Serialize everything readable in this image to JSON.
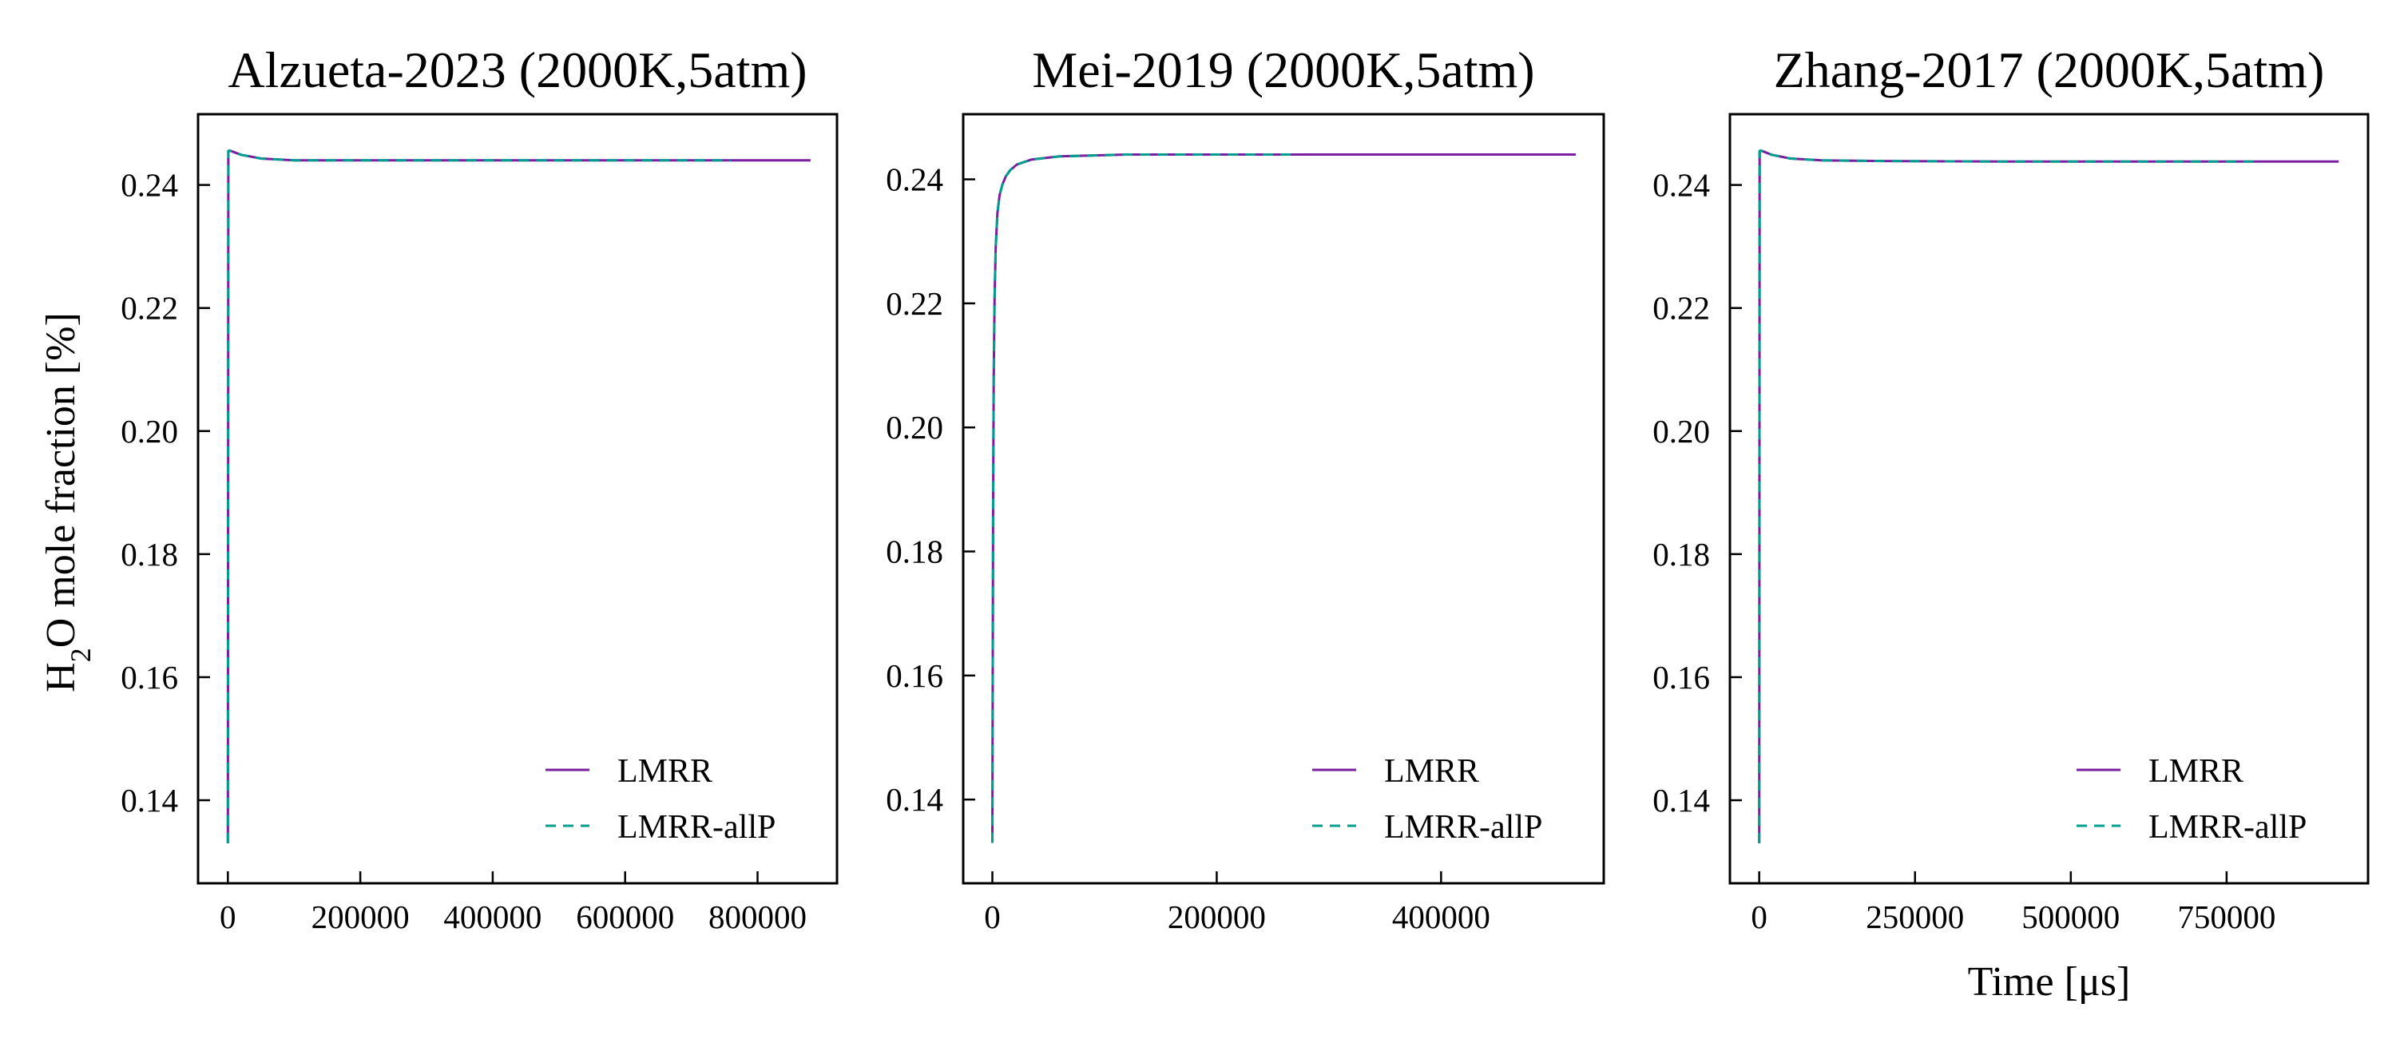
{
  "figure": {
    "ylabel_main": "H",
    "ylabel_sub": "2",
    "ylabel_rest": "O mole fraction [%]",
    "shared_xlabel": "Time [μs]"
  },
  "colors": {
    "LMRR": "#7b1fa2",
    "LMRR-allP": "#009e8e"
  },
  "chart_data": [
    {
      "type": "line",
      "title": "Alzueta-2023 (2000K,5atm)",
      "xlabel": "",
      "ylabel": "H2O mole fraction [%]",
      "xlim": [
        -45000,
        920000
      ],
      "ylim": [
        0.1265,
        0.2515
      ],
      "xticks": [
        0,
        200000,
        400000,
        600000,
        800000
      ],
      "xtick_labels": [
        "0",
        "200000",
        "400000",
        "600000",
        "800000"
      ],
      "yticks": [
        0.14,
        0.16,
        0.18,
        0.2,
        0.22,
        0.24
      ],
      "ytick_labels": [
        "0.14",
        "0.16",
        "0.18",
        "0.20",
        "0.22",
        "0.24"
      ],
      "legend_position": "lower-right",
      "grid": false,
      "series": [
        {
          "name": "LMRR",
          "style": "solid",
          "x": [
            0,
            700,
            2000,
            5000,
            20000,
            50000,
            100000,
            200000,
            400000,
            600000,
            800000,
            880000
          ],
          "y": [
            0.133,
            0.2455,
            0.2456,
            0.2455,
            0.2449,
            0.2443,
            0.244,
            0.244,
            0.244,
            0.244,
            0.244,
            0.244
          ]
        },
        {
          "name": "LMRR-allP",
          "style": "dashed",
          "x": [
            0,
            700,
            2000,
            5000,
            20000,
            50000,
            100000,
            200000,
            400000,
            600000,
            760000
          ],
          "y": [
            0.133,
            0.2455,
            0.2456,
            0.2455,
            0.2449,
            0.2443,
            0.244,
            0.244,
            0.244,
            0.244,
            0.244
          ]
        }
      ]
    },
    {
      "type": "line",
      "title": "Mei-2019 (2000K,5atm)",
      "xlabel": "",
      "ylabel": "",
      "xlim": [
        -26000,
        545000
      ],
      "ylim": [
        0.1265,
        0.2505
      ],
      "xticks": [
        0,
        200000,
        400000
      ],
      "xtick_labels": [
        "0",
        "200000",
        "400000"
      ],
      "yticks": [
        0.14,
        0.16,
        0.18,
        0.2,
        0.22,
        0.24
      ],
      "ytick_labels": [
        "0.14",
        "0.16",
        "0.18",
        "0.20",
        "0.22",
        "0.24"
      ],
      "legend_position": "lower-right",
      "grid": false,
      "series": [
        {
          "name": "LMRR",
          "style": "solid",
          "x": [
            0,
            600,
            1200,
            2000,
            3000,
            4500,
            6500,
            9000,
            12000,
            16000,
            22000,
            35000,
            60000,
            120000,
            270000,
            400000,
            520000
          ],
          "y": [
            0.133,
            0.185,
            0.208,
            0.221,
            0.229,
            0.2345,
            0.2375,
            0.2392,
            0.2405,
            0.2415,
            0.2424,
            0.2432,
            0.2437,
            0.244,
            0.244,
            0.244,
            0.244
          ]
        },
        {
          "name": "LMRR-allP",
          "style": "dashed",
          "x": [
            0,
            600,
            1200,
            2000,
            3000,
            4500,
            6500,
            9000,
            12000,
            16000,
            22000,
            35000,
            60000,
            120000,
            270000
          ],
          "y": [
            0.133,
            0.185,
            0.208,
            0.221,
            0.229,
            0.2345,
            0.2375,
            0.2392,
            0.2405,
            0.2415,
            0.2424,
            0.2432,
            0.2437,
            0.244,
            0.244
          ]
        }
      ]
    },
    {
      "type": "line",
      "title": "Zhang-2017 (2000K,5atm)",
      "xlabel": "Time [μs]",
      "ylabel": "",
      "xlim": [
        -47000,
        977000
      ],
      "ylim": [
        0.1265,
        0.2515
      ],
      "xticks": [
        0,
        250000,
        500000,
        750000
      ],
      "xtick_labels": [
        "0",
        "250000",
        "500000",
        "750000"
      ],
      "yticks": [
        0.14,
        0.16,
        0.18,
        0.2,
        0.22,
        0.24
      ],
      "ytick_labels": [
        "0.14",
        "0.16",
        "0.18",
        "0.20",
        "0.22",
        "0.24"
      ],
      "legend_position": "lower-right",
      "grid": false,
      "series": [
        {
          "name": "LMRR",
          "style": "solid",
          "x": [
            0,
            700,
            2000,
            5000,
            20000,
            50000,
            100000,
            200000,
            400000,
            600000,
            800000,
            930000
          ],
          "y": [
            0.133,
            0.2455,
            0.2456,
            0.2455,
            0.2449,
            0.2443,
            0.244,
            0.2439,
            0.2438,
            0.2438,
            0.2438,
            0.2438
          ]
        },
        {
          "name": "LMRR-allP",
          "style": "dashed",
          "x": [
            0,
            700,
            2000,
            5000,
            20000,
            50000,
            100000,
            200000,
            400000,
            600000,
            800000
          ],
          "y": [
            0.133,
            0.2455,
            0.2456,
            0.2455,
            0.2449,
            0.2443,
            0.244,
            0.2439,
            0.2438,
            0.2438,
            0.2438
          ]
        }
      ]
    }
  ]
}
